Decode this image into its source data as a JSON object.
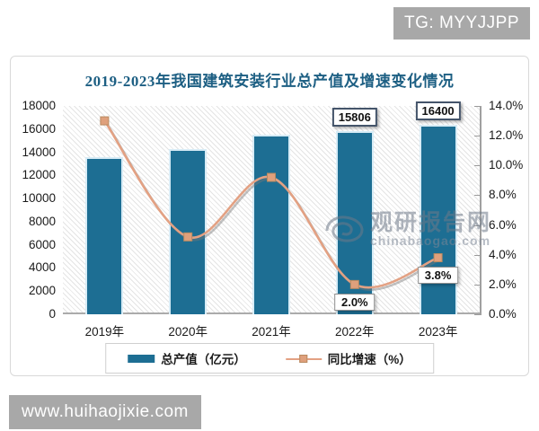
{
  "badges": {
    "top_right": "TG: MYYJJPP",
    "bottom_left": "www.huihaojixie.com"
  },
  "watermark": {
    "name": "观研报告网",
    "domain": "chinabaogao.com",
    "logo": "swirl-eye-logo"
  },
  "chart_data": {
    "type": "bar+line combo",
    "title": "2019-2023年我国建筑安装行业总产值及增速变化情况",
    "categories": [
      "2019年",
      "2020年",
      "2021年",
      "2022年",
      "2023年"
    ],
    "series": [
      {
        "name": "总产值（亿元）",
        "type": "bar",
        "axis": "left",
        "values": [
          13550,
          14250,
          15500,
          15806,
          16400
        ],
        "point_labels": [
          "",
          "",
          "",
          "15806",
          "16400"
        ],
        "color": "#1d6e93"
      },
      {
        "name": "同比增速（%）",
        "type": "line",
        "axis": "right",
        "values": [
          13.0,
          5.2,
          9.2,
          2.0,
          3.8
        ],
        "point_labels": [
          "",
          "",
          "",
          "2.0%",
          "3.8%"
        ],
        "color": "#e3a183"
      }
    ],
    "left_axis": {
      "min": 0,
      "max": 18000,
      "step": 2000,
      "ticks": [
        "18000",
        "16000",
        "14000",
        "12000",
        "10000",
        "8000",
        "6000",
        "4000",
        "2000",
        "0"
      ]
    },
    "right_axis": {
      "min": 0,
      "max": 14,
      "step": 2,
      "ticks": [
        "14.0%",
        "12.0%",
        "10.0%",
        "8.0%",
        "6.0%",
        "4.0%",
        "2.0%",
        "0.0%"
      ]
    },
    "legend_position": "bottom",
    "plot_background": "diagonal-hatch",
    "grid": false
  }
}
